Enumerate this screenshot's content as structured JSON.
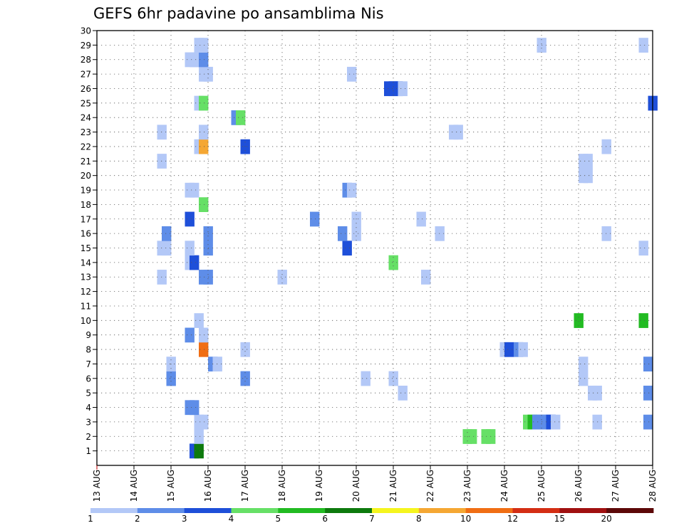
{
  "chart_data": {
    "type": "heatmap",
    "title": "GEFS 6hr padavine po ansamblima Nis",
    "x_tick_labels": [
      "13 AUG",
      "14 AUG",
      "15 AUG",
      "16 AUG",
      "17 AUG",
      "18 AUG",
      "19 AUG",
      "20 AUG",
      "21 AUG",
      "22 AUG",
      "23 AUG",
      "24 AUG",
      "25 AUG",
      "26 AUG",
      "27 AUG",
      "28 AUG"
    ],
    "y_tick_labels": [
      "1",
      "2",
      "3",
      "4",
      "5",
      "6",
      "7",
      "8",
      "9",
      "10",
      "11",
      "12",
      "13",
      "14",
      "15",
      "16",
      "17",
      "18",
      "19",
      "20",
      "21",
      "22",
      "23",
      "24",
      "25",
      "26",
      "27",
      "28",
      "29",
      "30"
    ],
    "x_range_days": [
      0,
      15
    ],
    "y_range": [
      0,
      30
    ],
    "time_step_hours": 6,
    "grid": "dotted",
    "colorbar": {
      "placement": "bottom",
      "labels": [
        "1",
        "2",
        "3",
        "4",
        "5",
        "6",
        "7",
        "8",
        "10",
        "12",
        "15",
        "20"
      ],
      "colors": [
        "#b3c8f7",
        "#5e8de8",
        "#1e4fd9",
        "#66e066",
        "#22bb22",
        "#0d7a0d",
        "#f5f51e",
        "#f5a733",
        "#f06e14",
        "#d42e14",
        "#a01010",
        "#5c0808"
      ]
    },
    "cells_by_member": {
      "1": [
        [
          2.5,
          3
        ],
        [
          2.625,
          6
        ]
      ],
      "2": [
        [
          2.625,
          1
        ],
        [
          9.875,
          4
        ],
        [
          10.0,
          4
        ],
        [
          10.375,
          4
        ],
        [
          10.5,
          4
        ]
      ],
      "3": [
        [
          2.625,
          1
        ],
        [
          2.75,
          1
        ],
        [
          11.5,
          4
        ],
        [
          11.625,
          5
        ],
        [
          11.75,
          2
        ],
        [
          11.875,
          2
        ],
        [
          12.0,
          2
        ],
        [
          12.125,
          3
        ],
        [
          12.25,
          1
        ],
        [
          13.375,
          1
        ],
        [
          14.75,
          2
        ]
      ],
      "4": [
        [
          2.375,
          2
        ],
        [
          2.5,
          2
        ]
      ],
      "5": [
        [
          8.125,
          1
        ],
        [
          13.25,
          1
        ],
        [
          13.375,
          1
        ],
        [
          14.75,
          2
        ]
      ],
      "6": [
        [
          1.875,
          2
        ],
        [
          3.875,
          2
        ],
        [
          7.125,
          1
        ],
        [
          7.875,
          1
        ],
        [
          13.0,
          1
        ]
      ],
      "7": [
        [
          1.875,
          1
        ],
        [
          3.0,
          2
        ],
        [
          3.125,
          1
        ],
        [
          13.0,
          1
        ],
        [
          14.75,
          2
        ]
      ],
      "8": [
        [
          2.75,
          9
        ],
        [
          3.875,
          1
        ],
        [
          10.875,
          1
        ],
        [
          11.0,
          3
        ],
        [
          11.25,
          2
        ],
        [
          11.375,
          1
        ]
      ],
      "9": [
        [
          2.375,
          2
        ],
        [
          2.75,
          1
        ]
      ],
      "10": [
        [
          2.625,
          1
        ],
        [
          12.875,
          5
        ],
        [
          14.625,
          5
        ]
      ],
      "13": [
        [
          1.625,
          1
        ],
        [
          2.75,
          2
        ],
        [
          2.875,
          2
        ],
        [
          4.875,
          1
        ],
        [
          8.75,
          1
        ]
      ],
      "14": [
        [
          2.375,
          1
        ],
        [
          2.5,
          3
        ],
        [
          7.875,
          4
        ]
      ],
      "15": [
        [
          1.625,
          1
        ],
        [
          1.75,
          1
        ],
        [
          2.375,
          1
        ],
        [
          2.875,
          2
        ],
        [
          6.625,
          3
        ],
        [
          14.625,
          1
        ]
      ],
      "16": [
        [
          1.75,
          2
        ],
        [
          2.875,
          2
        ],
        [
          6.5,
          2
        ],
        [
          6.875,
          1
        ],
        [
          9.125,
          1
        ],
        [
          13.625,
          1
        ]
      ],
      "17": [
        [
          2.375,
          3
        ],
        [
          5.75,
          2
        ],
        [
          6.875,
          1
        ],
        [
          8.625,
          1
        ]
      ],
      "18": [
        [
          2.75,
          4
        ]
      ],
      "19": [
        [
          2.375,
          1
        ],
        [
          2.5,
          1
        ],
        [
          6.625,
          2
        ],
        [
          6.75,
          1
        ]
      ],
      "20": [
        [
          13.0,
          1
        ],
        [
          13.125,
          1
        ]
      ],
      "21": [
        [
          1.625,
          1
        ],
        [
          13.0,
          1
        ],
        [
          13.125,
          1
        ]
      ],
      "22": [
        [
          2.625,
          1
        ],
        [
          2.75,
          8
        ],
        [
          3.875,
          3
        ],
        [
          13.625,
          1
        ]
      ],
      "23": [
        [
          1.625,
          1
        ],
        [
          2.75,
          1
        ],
        [
          9.5,
          1
        ],
        [
          9.625,
          1
        ]
      ],
      "24": [
        [
          3.625,
          2
        ],
        [
          3.75,
          4
        ]
      ],
      "25": [
        [
          2.625,
          1
        ],
        [
          2.75,
          4
        ],
        [
          14.875,
          3
        ]
      ],
      "26": [
        [
          7.75,
          3
        ],
        [
          7.875,
          3
        ],
        [
          8.0,
          3
        ],
        [
          8.125,
          1
        ]
      ],
      "27": [
        [
          2.75,
          1
        ],
        [
          2.875,
          1
        ],
        [
          6.75,
          1
        ]
      ],
      "28": [
        [
          2.375,
          1
        ],
        [
          2.5,
          1
        ],
        [
          2.625,
          1
        ],
        [
          2.75,
          2
        ]
      ],
      "29": [
        [
          2.625,
          1
        ],
        [
          2.75,
          1
        ],
        [
          11.875,
          1
        ],
        [
          14.625,
          1
        ]
      ]
    }
  }
}
